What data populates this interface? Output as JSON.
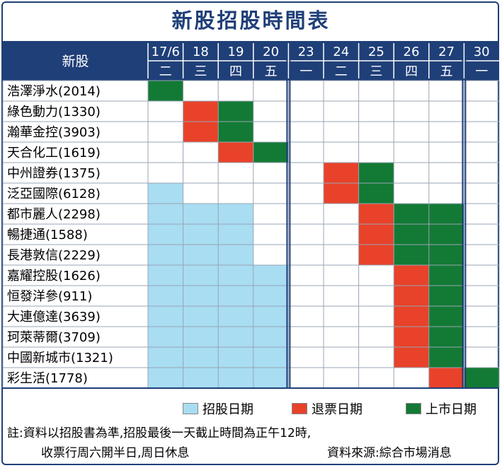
{
  "title": "新股招股時間表",
  "colors": {
    "header_bg": "#1f3f78",
    "subscription": "#a8ddf2",
    "refund": "#e8422a",
    "listing": "#137a35",
    "grid": "#9aa4b4",
    "week_divider": "#1f3f78"
  },
  "chart_data": {
    "type": "table",
    "column_header": "新股",
    "days": [
      {
        "date": "17/6",
        "weekday": "二"
      },
      {
        "date": "18",
        "weekday": "三"
      },
      {
        "date": "19",
        "weekday": "四"
      },
      {
        "date": "20",
        "weekday": "五"
      },
      {
        "date": "23",
        "weekday": "一"
      },
      {
        "date": "24",
        "weekday": "二"
      },
      {
        "date": "25",
        "weekday": "三"
      },
      {
        "date": "26",
        "weekday": "四"
      },
      {
        "date": "27",
        "weekday": "五"
      },
      {
        "date": "30",
        "weekday": "一"
      }
    ],
    "stocks": [
      {
        "name": "浩澤淨水(2014)",
        "status": [
          "L",
          "",
          "",
          "",
          "",
          "",
          "",
          "",
          "",
          ""
        ]
      },
      {
        "name": "綠色動力(1330)",
        "status": [
          "",
          "R",
          "L",
          "",
          "",
          "",
          "",
          "",
          "",
          ""
        ]
      },
      {
        "name": "瀚華金控(3903)",
        "status": [
          "",
          "R",
          "L",
          "",
          "",
          "",
          "",
          "",
          "",
          ""
        ]
      },
      {
        "name": "天合化工(1619)",
        "status": [
          "",
          "",
          "R",
          "L",
          "",
          "",
          "",
          "",
          "",
          ""
        ]
      },
      {
        "name": "中州證券(1375)",
        "status": [
          "",
          "",
          "",
          "",
          "",
          "R",
          "L",
          "",
          "",
          ""
        ]
      },
      {
        "name": "泛亞國際(6128)",
        "status": [
          "S",
          "",
          "",
          "",
          "",
          "R",
          "L",
          "",
          "",
          ""
        ]
      },
      {
        "name": "都市麗人(2298)",
        "status": [
          "S",
          "S",
          "S",
          "",
          "",
          "",
          "R",
          "L",
          "L",
          ""
        ]
      },
      {
        "name": "暢捷通(1588)",
        "status": [
          "S",
          "S",
          "S",
          "",
          "",
          "",
          "R",
          "L",
          "L",
          ""
        ]
      },
      {
        "name": "長港敦信(2229)",
        "status": [
          "S",
          "S",
          "S",
          "",
          "",
          "",
          "R",
          "L",
          "L",
          ""
        ]
      },
      {
        "name": "嘉耀控股(1626)",
        "status": [
          "S",
          "S",
          "S",
          "S",
          "",
          "",
          "",
          "R",
          "L",
          ""
        ]
      },
      {
        "name": "恒發洋參(911)",
        "status": [
          "S",
          "S",
          "S",
          "S",
          "",
          "",
          "",
          "R",
          "L",
          ""
        ]
      },
      {
        "name": "大連億達(3639)",
        "status": [
          "S",
          "S",
          "S",
          "S",
          "",
          "",
          "",
          "R",
          "L",
          ""
        ]
      },
      {
        "name": "珂萊蒂爾(3709)",
        "status": [
          "S",
          "S",
          "S",
          "S",
          "",
          "",
          "",
          "R",
          "L",
          ""
        ]
      },
      {
        "name": "中國新城市(1321)",
        "status": [
          "S",
          "S",
          "S",
          "S",
          "",
          "",
          "",
          "R",
          "L",
          ""
        ]
      },
      {
        "name": "彩生活(1778)",
        "status": [
          "S",
          "S",
          "S",
          "S",
          "",
          "",
          "",
          "",
          "R",
          "L"
        ]
      }
    ],
    "legend": [
      {
        "key": "S",
        "label": "招股日期"
      },
      {
        "key": "R",
        "label": "退票日期"
      },
      {
        "key": "L",
        "label": "上市日期"
      }
    ]
  },
  "notes": {
    "line1": "註:資料以招股書為準,招股最後一天截止時間為正午12時,",
    "line2": "收票行周六開半日,周日休息",
    "source": "資料來源:綜合市場消息"
  }
}
